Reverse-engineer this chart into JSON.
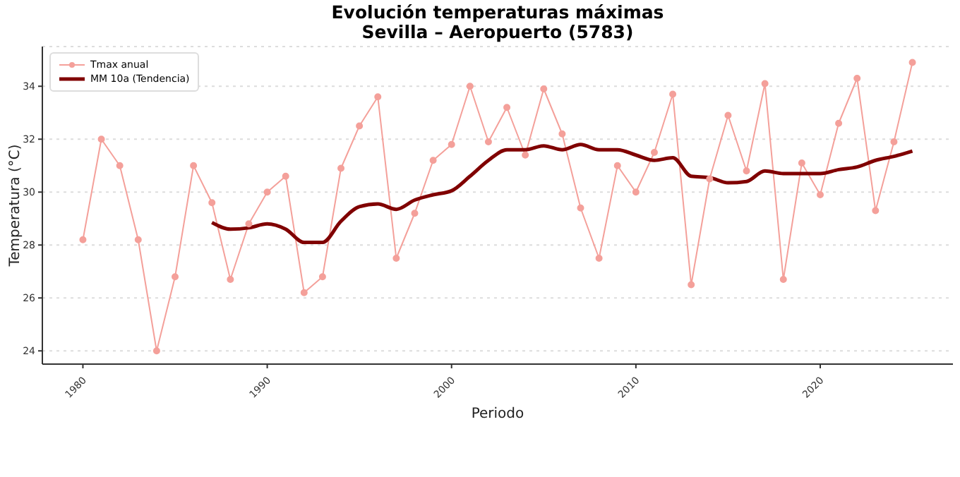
{
  "chart_data": {
    "type": "line",
    "title": "Evolución temperaturas máximas\nSevilla – Aeropuerto (5783)",
    "xlabel": "Periodo",
    "ylabel": "Temperatura (°C)",
    "xlim": [
      1977.8,
      2027.2
    ],
    "xticks": [
      1980,
      1990,
      2000,
      2010,
      2020
    ],
    "ylim": [
      23.5,
      35.5
    ],
    "yticks": [
      24,
      26,
      28,
      30,
      32,
      34
    ],
    "grid": "y",
    "legend": "top left",
    "series": [
      {
        "name": "Tmax anual",
        "color": "#f4a09a",
        "marker": "circle",
        "x": [
          1980,
          1981,
          1982,
          1983,
          1984,
          1985,
          1986,
          1987,
          1988,
          1989,
          1990,
          1991,
          1992,
          1993,
          1994,
          1995,
          1996,
          1997,
          1998,
          1999,
          2000,
          2001,
          2002,
          2003,
          2004,
          2005,
          2006,
          2007,
          2008,
          2009,
          2010,
          2011,
          2012,
          2013,
          2014,
          2015,
          2016,
          2017,
          2018,
          2019,
          2020,
          2021,
          2022,
          2023,
          2024,
          2025
        ],
        "values": [
          28.2,
          32.0,
          31.0,
          28.2,
          24.0,
          26.8,
          31.0,
          29.6,
          26.7,
          28.8,
          30.0,
          30.6,
          26.2,
          26.8,
          30.9,
          32.5,
          33.6,
          27.5,
          29.2,
          31.2,
          31.8,
          34.0,
          31.9,
          33.2,
          31.4,
          33.9,
          32.2,
          29.4,
          27.5,
          31.0,
          30.0,
          31.5,
          33.7,
          26.5,
          30.5,
          32.9,
          30.8,
          34.1,
          26.7,
          31.1,
          29.9,
          32.6,
          34.3,
          29.3,
          31.9,
          34.9
        ]
      },
      {
        "name": "MM 10a (Tendencia)",
        "color": "#800000",
        "marker": "none",
        "x": [
          1987,
          1988,
          1989,
          1990,
          1991,
          1992,
          1993,
          1994,
          1995,
          1996,
          1997,
          1998,
          1999,
          2000,
          2001,
          2002,
          2003,
          2004,
          2005,
          2006,
          2007,
          2008,
          2009,
          2010,
          2011,
          2012,
          2013,
          2014,
          2015,
          2016,
          2017,
          2018,
          2019,
          2020,
          2021,
          2022,
          2023,
          2024,
          2025
        ],
        "values": [
          28.85,
          28.6,
          28.65,
          28.8,
          28.6,
          28.1,
          28.1,
          28.9,
          29.45,
          29.55,
          29.35,
          29.7,
          29.9,
          30.05,
          30.6,
          31.2,
          31.6,
          31.6,
          31.75,
          31.6,
          31.8,
          31.6,
          31.6,
          31.4,
          31.2,
          31.3,
          30.6,
          30.55,
          30.35,
          30.4,
          30.8,
          30.7,
          30.7,
          30.7,
          30.85,
          30.95,
          31.2,
          31.35,
          31.55
        ]
      }
    ]
  }
}
